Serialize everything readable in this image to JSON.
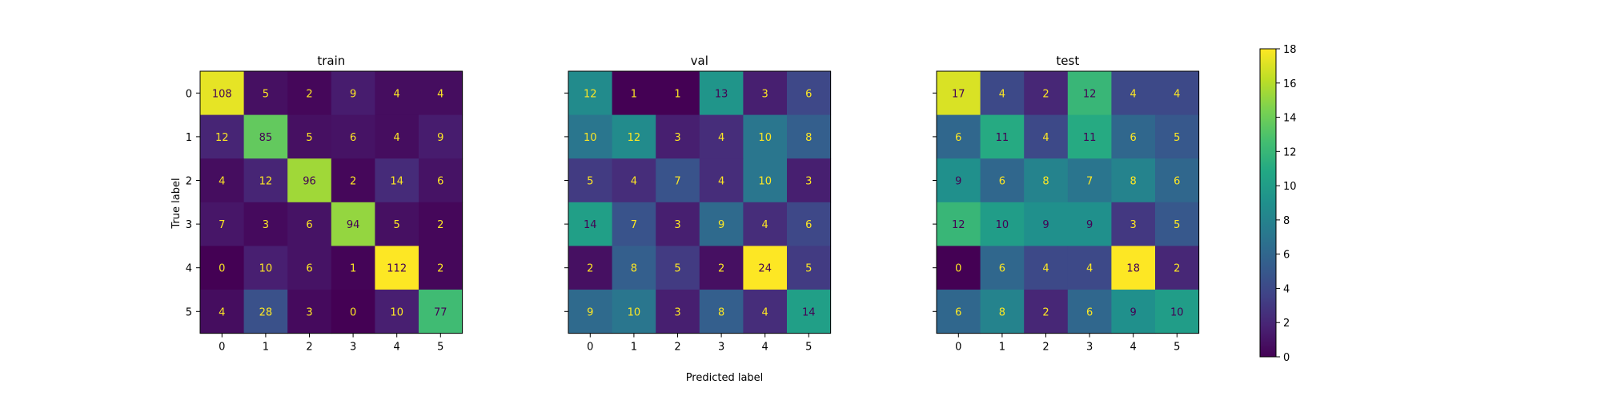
{
  "chart_data": {
    "type": "heatmap",
    "xlabel": "Predicted label",
    "ylabel": "True label",
    "labels": [
      "0",
      "1",
      "2",
      "3",
      "4",
      "5"
    ],
    "colormap": "viridis",
    "colorbar": {
      "min": 0,
      "max": 18,
      "ticks": [
        "0",
        "2",
        "4",
        "6",
        "8",
        "10",
        "12",
        "14",
        "16",
        "18"
      ]
    },
    "panels": [
      {
        "title": "train",
        "matrix": [
          [
            108,
            5,
            2,
            9,
            4,
            4
          ],
          [
            12,
            85,
            5,
            6,
            4,
            9
          ],
          [
            4,
            12,
            96,
            2,
            14,
            6
          ],
          [
            7,
            3,
            6,
            94,
            5,
            2
          ],
          [
            0,
            10,
            6,
            1,
            112,
            2
          ],
          [
            4,
            28,
            3,
            0,
            10,
            77
          ]
        ]
      },
      {
        "title": "val",
        "matrix": [
          [
            12,
            1,
            1,
            13,
            3,
            6
          ],
          [
            10,
            12,
            3,
            4,
            10,
            8
          ],
          [
            5,
            4,
            7,
            4,
            10,
            3
          ],
          [
            14,
            7,
            3,
            9,
            4,
            6
          ],
          [
            2,
            8,
            5,
            2,
            24,
            5
          ],
          [
            9,
            10,
            3,
            8,
            4,
            14
          ]
        ]
      },
      {
        "title": "test",
        "matrix": [
          [
            17,
            4,
            2,
            12,
            4,
            4
          ],
          [
            6,
            11,
            4,
            11,
            6,
            5
          ],
          [
            9,
            6,
            8,
            7,
            8,
            6
          ],
          [
            12,
            10,
            9,
            9,
            3,
            5
          ],
          [
            0,
            6,
            4,
            4,
            18,
            2
          ],
          [
            6,
            8,
            2,
            6,
            9,
            10
          ]
        ]
      }
    ]
  }
}
